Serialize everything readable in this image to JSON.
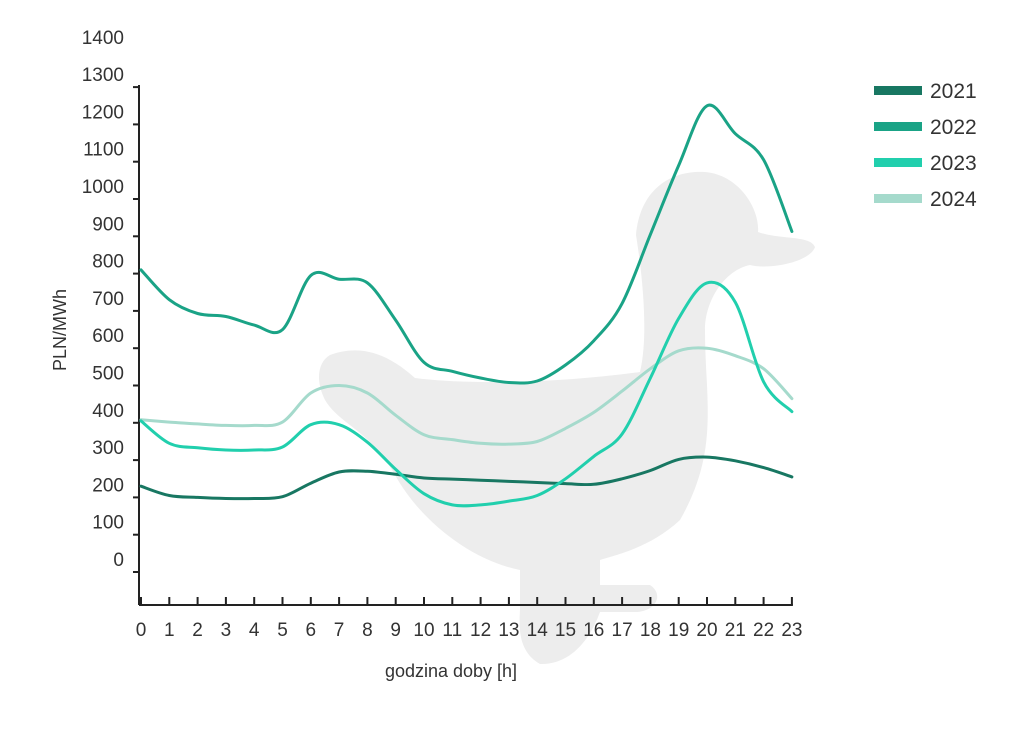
{
  "chart_data": {
    "type": "line",
    "title": "",
    "xlabel": "godzina doby [h]",
    "ylabel": "PLN/MWh",
    "x": [
      0,
      1,
      2,
      3,
      4,
      5,
      6,
      7,
      8,
      9,
      10,
      11,
      12,
      13,
      14,
      15,
      16,
      17,
      18,
      19,
      20,
      21,
      22,
      23
    ],
    "x_tick_labels": [
      "0",
      "1",
      "2",
      "3",
      "4",
      "5",
      "6",
      "7",
      "8",
      "9",
      "10",
      "11",
      "12",
      "13",
      "14",
      "15",
      "16",
      "17",
      "18",
      "19",
      "20",
      "21",
      "22",
      "23"
    ],
    "y_tick_labels": [
      "0",
      "100",
      "200",
      "300",
      "400",
      "500",
      "600",
      "700",
      "800",
      "900",
      "1000",
      "1100",
      "1200",
      "1300",
      "1400"
    ],
    "ylim": [
      0,
      1400
    ],
    "grid": false,
    "legend_position": "top-right",
    "background_decoration": "duck-silhouette",
    "series": [
      {
        "name": "2021",
        "color": "#187762",
        "values": [
          230,
          205,
          200,
          197,
          197,
          202,
          238,
          268,
          270,
          262,
          252,
          249,
          246,
          243,
          240,
          237,
          235,
          250,
          272,
          302,
          308,
          298,
          280,
          255
        ]
      },
      {
        "name": "2022",
        "color": "#1aa386",
        "values": [
          810,
          730,
          693,
          685,
          662,
          650,
          795,
          785,
          775,
          675,
          562,
          538,
          520,
          508,
          512,
          555,
          620,
          720,
          905,
          1090,
          1250,
          1175,
          1105,
          913
        ]
      },
      {
        "name": "2023",
        "color": "#21cfad",
        "values": [
          405,
          345,
          333,
          327,
          327,
          335,
          395,
          395,
          348,
          275,
          210,
          180,
          180,
          190,
          205,
          250,
          310,
          370,
          520,
          680,
          775,
          723,
          510,
          430
        ]
      },
      {
        "name": "2024",
        "color": "#a5dacc",
        "values": [
          408,
          402,
          397,
          393,
          393,
          402,
          480,
          500,
          480,
          420,
          368,
          355,
          345,
          343,
          350,
          385,
          428,
          485,
          545,
          593,
          600,
          580,
          545,
          465
        ]
      }
    ]
  }
}
